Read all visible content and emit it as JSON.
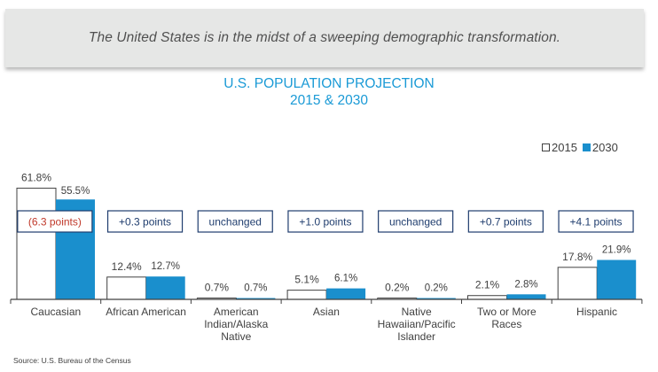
{
  "banner": {
    "text": "The United States is in the midst of a sweeping demographic transformation."
  },
  "chart_data": {
    "type": "bar",
    "title": "U.S. POPULATION PROJECTION",
    "subtitle": "2015 & 2030",
    "categories": [
      [
        "Caucasian"
      ],
      [
        "African American"
      ],
      [
        "American",
        "Indian/Alaska",
        "Native"
      ],
      [
        "Asian"
      ],
      [
        "Native",
        "Hawaiian/Pacific",
        "Islander"
      ],
      [
        "Two or More",
        "Races"
      ],
      [
        "Hispanic"
      ]
    ],
    "series": [
      {
        "name": "2015",
        "values": [
          61.8,
          12.4,
          0.7,
          5.1,
          0.2,
          2.1,
          17.8
        ],
        "labels": [
          "61.8%",
          "12.4%",
          "0.7%",
          "5.1%",
          "0.2%",
          "2.1%",
          "17.8%"
        ]
      },
      {
        "name": "2030",
        "values": [
          55.5,
          12.7,
          0.7,
          6.1,
          0.2,
          2.8,
          21.9
        ],
        "labels": [
          "55.5%",
          "12.7%",
          "0.7%",
          "6.1%",
          "0.2%",
          "2.8%",
          "21.9%"
        ]
      }
    ],
    "changes": [
      "(6.3 points)",
      "+0.3 points",
      "unchanged",
      "+1.0 points",
      "unchanged",
      "+0.7 points",
      "+4.1 points"
    ],
    "change_negative": [
      true,
      false,
      false,
      false,
      false,
      false,
      false
    ],
    "ylim": [
      0,
      62
    ],
    "legend_position": "top-right",
    "xlabel": "",
    "ylabel": ""
  },
  "legend": {
    "label_2015": "2015",
    "label_2030": "2030"
  },
  "source": "Source: U.S. Bureau of the Census",
  "colors": {
    "bar_2015_fill": "#ffffff",
    "bar_2015_stroke": "#404040",
    "bar_2030": "#1a8fcd",
    "title": "#1a9ad6",
    "change_box_border": "#1f3d6e",
    "change_negative": "#c0392b",
    "change_positive": "#1f3d6e",
    "axis": "#404040",
    "text": "#404040"
  }
}
